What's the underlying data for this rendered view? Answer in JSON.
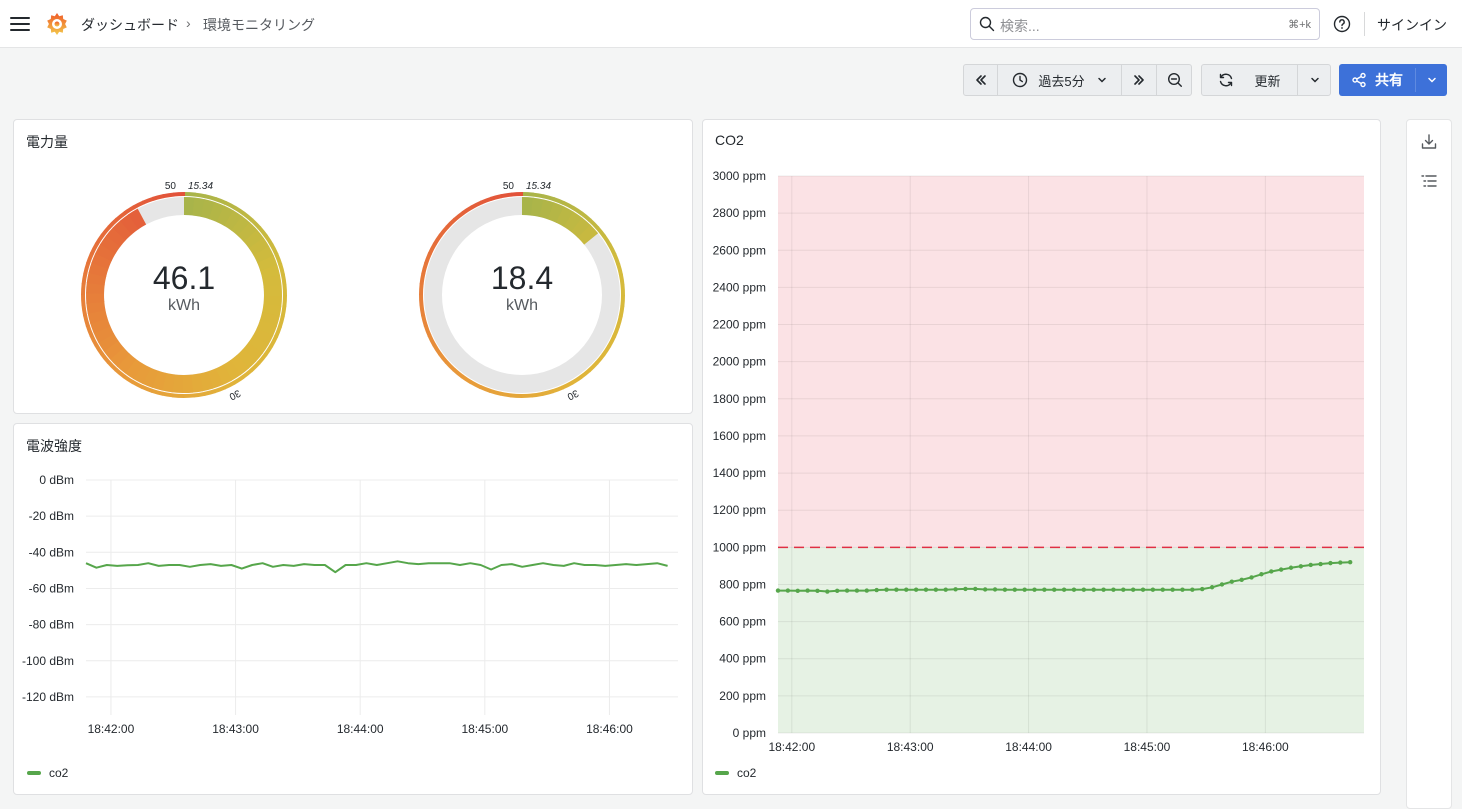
{
  "header": {
    "breadcrumb": [
      "ダッシュボード",
      "環境モニタリング"
    ],
    "breadcrumb_sep": "›",
    "search_placeholder": "検索...",
    "search_shortcut": "⌘+k",
    "signin_label": "サインイン"
  },
  "toolbar": {
    "time_range": "過去5分",
    "refresh_label": "更新",
    "share_label": "共有"
  },
  "panels": {
    "power": {
      "title": "電力量",
      "gauges": [
        {
          "value": "46.1",
          "unit": "kWh",
          "fraction": 0.92,
          "marks": [
            "50",
            "15.34",
            "30"
          ]
        },
        {
          "value": "18.4",
          "unit": "kWh",
          "fraction": 0.14,
          "marks": [
            "50",
            "15.34",
            "30"
          ]
        }
      ]
    },
    "signal": {
      "title": "電波強度",
      "legend": "co2"
    },
    "co2": {
      "title": "CO2",
      "legend": "co2"
    }
  },
  "colors": {
    "accent": "#3d71d9",
    "series": "#56a64b",
    "threshold_red": "#e02f44",
    "red_zone": "#fbe2e5",
    "green_zone": "#e6f2e4"
  },
  "chart_data": [
    {
      "type": "line",
      "title": "電波強度",
      "ylim": [
        -130,
        0
      ],
      "yticks": [
        "0 dBm",
        "-20 dBm",
        "-40 dBm",
        "-60 dBm",
        "-80 dBm",
        "-100 dBm",
        "-120 dBm"
      ],
      "ytick_values": [
        0,
        -20,
        -40,
        -60,
        -80,
        -100,
        -120
      ],
      "xticks": [
        "18:42:00",
        "18:43:00",
        "18:44:00",
        "18:45:00",
        "18:46:00"
      ],
      "xlim_seconds": [
        -12,
        273
      ],
      "series": [
        {
          "name": "co2",
          "x_seconds": [
            -12,
            -7,
            -2,
            3,
            8,
            13,
            18,
            23,
            28,
            33,
            38,
            43,
            48,
            53,
            58,
            63,
            68,
            73,
            78,
            83,
            88,
            93,
            98,
            103,
            108,
            113,
            118,
            123,
            128,
            133,
            138,
            143,
            148,
            153,
            158,
            163,
            168,
            173,
            178,
            183,
            188,
            193,
            198,
            203,
            208,
            213,
            218,
            223,
            228,
            233,
            238,
            243,
            248,
            253,
            258,
            263,
            268
          ],
          "values": [
            -46,
            -48.5,
            -47,
            -47.5,
            -47.2,
            -47,
            -46,
            -47.5,
            -47,
            -47,
            -48,
            -47,
            -46.5,
            -47.5,
            -47,
            -49,
            -47,
            -46,
            -48,
            -47,
            -47.5,
            -46.5,
            -47,
            -47,
            -51,
            -47,
            -47,
            -46,
            -47,
            -46,
            -45,
            -46,
            -46.5,
            -46,
            -46,
            -46,
            -47,
            -46,
            -47,
            -49.5,
            -47,
            -46.5,
            -48,
            -47,
            -46,
            -47,
            -47.5,
            -46,
            -47,
            -47,
            -47.5,
            -47,
            -46.5,
            -47,
            -46.5,
            -46,
            -47.5
          ]
        }
      ]
    },
    {
      "type": "line",
      "title": "CO2",
      "ylim": [
        0,
        3000
      ],
      "yticks": [
        "3000 ppm",
        "2800 ppm",
        "2600 ppm",
        "2400 ppm",
        "2200 ppm",
        "2000 ppm",
        "1800 ppm",
        "1600 ppm",
        "1400 ppm",
        "1200 ppm",
        "1000 ppm",
        "800 ppm",
        "600 ppm",
        "400 ppm",
        "200 ppm",
        "0 ppm"
      ],
      "ytick_values": [
        3000,
        2800,
        2600,
        2400,
        2200,
        2000,
        1800,
        1600,
        1400,
        1200,
        1000,
        800,
        600,
        400,
        200,
        0
      ],
      "xticks": [
        "18:42:00",
        "18:43:00",
        "18:44:00",
        "18:45:00",
        "18:46:00"
      ],
      "xlim_seconds": [
        -7,
        290
      ],
      "threshold": 1000,
      "series": [
        {
          "name": "co2",
          "x_seconds": [
            -7,
            -2,
            3,
            8,
            13,
            18,
            23,
            28,
            33,
            38,
            43,
            48,
            53,
            58,
            63,
            68,
            73,
            78,
            83,
            88,
            93,
            98,
            103,
            108,
            113,
            118,
            123,
            128,
            133,
            138,
            143,
            148,
            153,
            158,
            163,
            168,
            173,
            178,
            183,
            188,
            193,
            198,
            203,
            208,
            213,
            218,
            223,
            228,
            233,
            238,
            243,
            248,
            253,
            258,
            263,
            268,
            273,
            278,
            283
          ],
          "values": [
            767,
            767,
            766,
            767,
            766,
            762,
            766,
            767,
            767,
            767,
            770,
            772,
            772,
            772,
            772,
            772,
            772,
            772,
            774,
            776,
            776,
            773,
            773,
            772,
            772,
            772,
            772,
            772,
            772,
            772,
            772,
            772,
            772,
            772,
            772,
            772,
            772,
            772,
            772,
            772,
            772,
            772,
            772,
            775,
            785,
            800,
            815,
            825,
            838,
            855,
            870,
            880,
            890,
            898,
            905,
            910,
            915,
            918,
            920
          ]
        }
      ]
    }
  ]
}
